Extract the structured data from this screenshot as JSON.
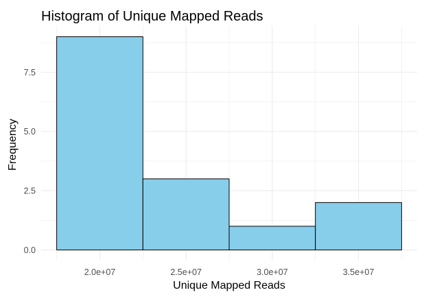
{
  "chart_data": {
    "type": "bar",
    "title": "Histogram of Unique Mapped Reads",
    "xlabel": "Unique Mapped Reads",
    "ylabel": "Frequency",
    "bins": [
      {
        "start": 17500000,
        "end": 22500000,
        "count": 9
      },
      {
        "start": 22500000,
        "end": 27500000,
        "count": 3
      },
      {
        "start": 27500000,
        "end": 32500000,
        "count": 1
      },
      {
        "start": 32500000,
        "end": 37500000,
        "count": 2
      }
    ],
    "x_ticks": [
      {
        "value": 20000000,
        "label": "2.0e+07"
      },
      {
        "value": 25000000,
        "label": "2.5e+07"
      },
      {
        "value": 30000000,
        "label": "3.0e+07"
      },
      {
        "value": 35000000,
        "label": "3.5e+07"
      }
    ],
    "y_ticks": [
      {
        "value": 0,
        "label": "0.0"
      },
      {
        "value": 2.5,
        "label": "2.5"
      },
      {
        "value": 5,
        "label": "5.0"
      },
      {
        "value": 7.5,
        "label": "7.5"
      }
    ],
    "xlim": [
      16600000,
      38400000
    ],
    "ylim": [
      -0.45,
      9.45
    ],
    "grid": true,
    "legend": "none",
    "colors": {
      "fill": "#87CEEB",
      "stroke": "#000000",
      "grid": "#ebebeb",
      "tick_text": "#4d4d4d"
    }
  }
}
